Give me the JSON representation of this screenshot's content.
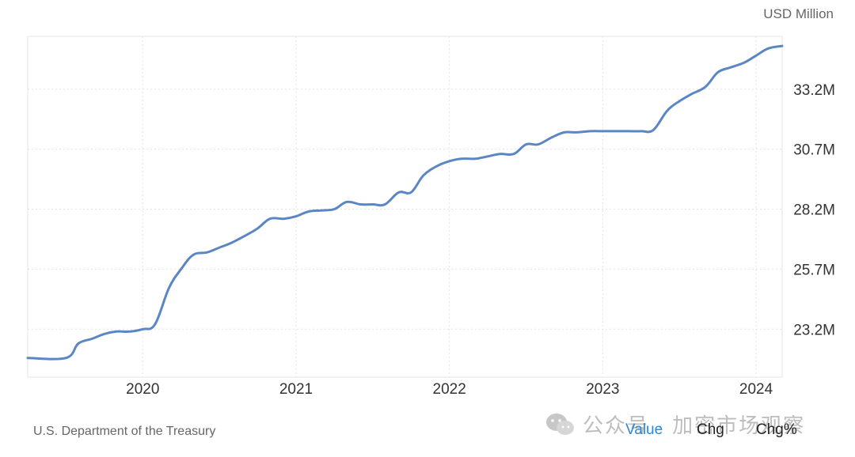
{
  "chart_data": {
    "type": "line",
    "unit_label": "USD Million",
    "y_ticks": [
      "23.2M",
      "25.7M",
      "28.2M",
      "30.7M",
      "33.2M"
    ],
    "y_tick_values": [
      23.2,
      25.7,
      28.2,
      30.7,
      33.2
    ],
    "x_ticks": [
      "2020",
      "2021",
      "2022",
      "2023",
      "2024"
    ],
    "x_tick_values": [
      2020.0,
      2021.0,
      2022.0,
      2023.0,
      2024.0
    ],
    "xlim": [
      2019.25,
      2024.17
    ],
    "ylim": [
      21.2,
      35.4
    ],
    "grid": true,
    "color": "#5b86c5",
    "series": [
      {
        "x": [
          2019.25,
          2019.5,
          2019.58,
          2019.67,
          2019.75,
          2019.83,
          2019.92,
          2020.0,
          2020.08,
          2020.17,
          2020.25,
          2020.33,
          2020.42,
          2020.5,
          2020.58,
          2020.67,
          2020.75,
          2020.83,
          2020.92,
          2021.0,
          2021.08,
          2021.17,
          2021.25,
          2021.33,
          2021.42,
          2021.5,
          2021.58,
          2021.67,
          2021.75,
          2021.83,
          2021.92,
          2022.0,
          2022.08,
          2022.17,
          2022.25,
          2022.33,
          2022.42,
          2022.5,
          2022.58,
          2022.67,
          2022.75,
          2022.83,
          2022.92,
          2023.0,
          2023.08,
          2023.17,
          2023.25,
          2023.33,
          2023.42,
          2023.5,
          2023.58,
          2023.67,
          2023.75,
          2023.83,
          2023.92,
          2024.0,
          2024.08,
          2024.17
        ],
        "y": [
          22.0,
          22.0,
          22.6,
          22.8,
          23.0,
          23.1,
          23.1,
          23.2,
          23.4,
          24.9,
          25.7,
          26.3,
          26.4,
          26.6,
          26.8,
          27.1,
          27.4,
          27.8,
          27.8,
          27.9,
          28.1,
          28.15,
          28.2,
          28.5,
          28.4,
          28.4,
          28.4,
          28.9,
          28.9,
          29.6,
          30.0,
          30.2,
          30.3,
          30.3,
          30.4,
          30.5,
          30.5,
          30.9,
          30.9,
          31.2,
          31.4,
          31.4,
          31.45,
          31.45,
          31.45,
          31.45,
          31.45,
          31.5,
          32.3,
          32.7,
          33.0,
          33.3,
          33.9,
          34.1,
          34.3,
          34.6,
          34.9,
          35.0
        ]
      }
    ]
  },
  "footer": {
    "source": "U.S. Department of the Treasury",
    "controls": {
      "value_label": "Value",
      "chg_label": "Chg",
      "chgpct_label": "Chg%"
    },
    "watermark": "公众号 · 加密市场观察"
  },
  "colors": {
    "line": "#5b86c5",
    "grid": "#e3e3e3",
    "active_control": "#2a8ad4",
    "text": "#333333",
    "muted": "#666666"
  }
}
